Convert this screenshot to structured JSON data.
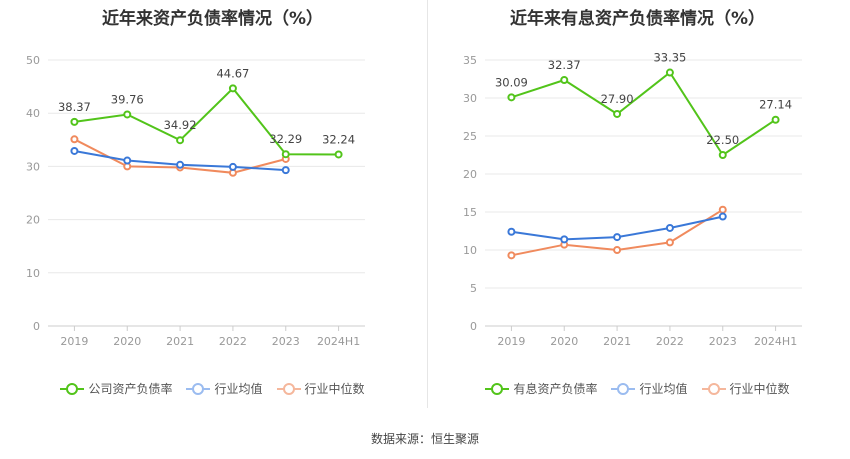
{
  "footer": {
    "source": "数据来源：恒生聚源"
  },
  "chart_data": [
    {
      "type": "line",
      "title": "近年来资产负债率情况（%）",
      "categories": [
        "2019",
        "2020",
        "2021",
        "2022",
        "2023",
        "2024H1"
      ],
      "ylim": [
        0,
        50
      ],
      "yticks": [
        0,
        10,
        20,
        30,
        40,
        50
      ],
      "series": [
        {
          "name": "公司资产负债率",
          "color": "#52c41a",
          "values": [
            38.37,
            39.76,
            34.92,
            44.67,
            32.29,
            32.24
          ],
          "labels": [
            "38.37",
            "39.76",
            "34.92",
            "44.67",
            "32.29",
            "32.24"
          ]
        },
        {
          "name": "行业均值",
          "color": "#3a78d8",
          "values": [
            32.9,
            31.1,
            30.3,
            29.9,
            29.3,
            null
          ]
        },
        {
          "name": "行业中位数",
          "color": "#f08a5d",
          "values": [
            35.1,
            30.0,
            29.8,
            28.8,
            31.4,
            null
          ]
        }
      ]
    },
    {
      "type": "line",
      "title": "近年来有息资产负债率情况（%）",
      "categories": [
        "2019",
        "2020",
        "2021",
        "2022",
        "2023",
        "2024H1"
      ],
      "ylim": [
        0,
        35
      ],
      "yticks": [
        0,
        5,
        10,
        15,
        20,
        25,
        30,
        35
      ],
      "series": [
        {
          "name": "有息资产负债率",
          "color": "#52c41a",
          "values": [
            30.09,
            32.37,
            27.9,
            33.35,
            22.5,
            27.14
          ],
          "labels": [
            "30.09",
            "32.37",
            "27.90",
            "33.35",
            "22.50",
            "27.14"
          ]
        },
        {
          "name": "行业均值",
          "color": "#3a78d8",
          "values": [
            12.4,
            11.4,
            11.7,
            12.9,
            14.4,
            null
          ]
        },
        {
          "name": "行业中位数",
          "color": "#f08a5d",
          "values": [
            9.3,
            10.7,
            10.0,
            11.0,
            15.3,
            null
          ]
        }
      ]
    }
  ]
}
